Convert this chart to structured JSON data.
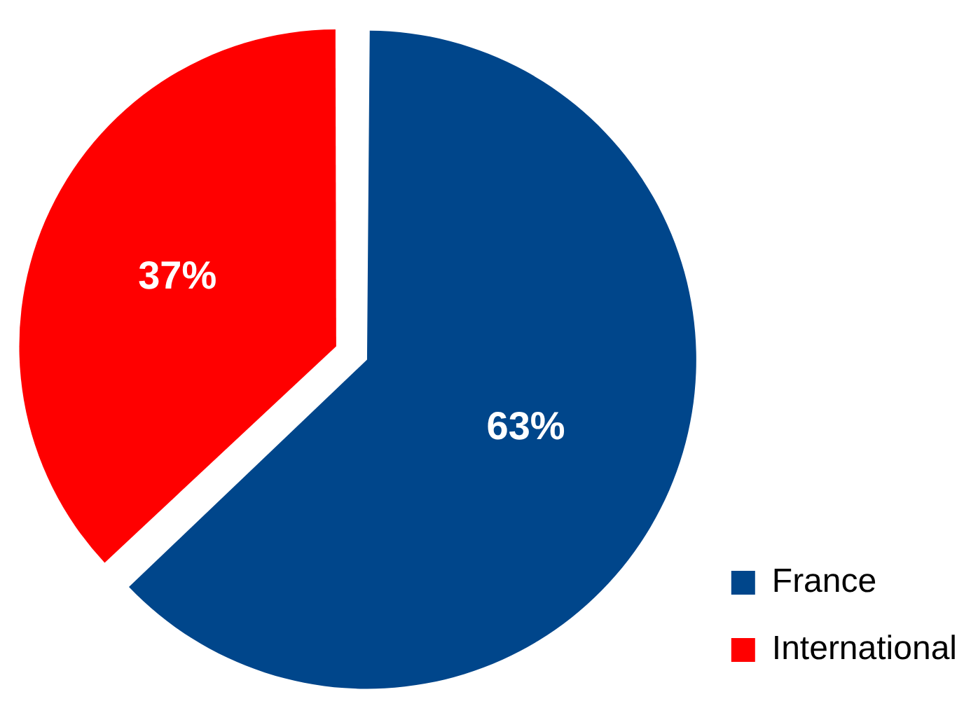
{
  "chart_data": {
    "type": "pie",
    "categories": [
      "France",
      "International"
    ],
    "values": [
      63,
      37
    ],
    "colors": [
      "#00468b",
      "#ff0000"
    ],
    "value_labels": [
      "63%",
      "37%"
    ],
    "legend": "bottom right"
  }
}
